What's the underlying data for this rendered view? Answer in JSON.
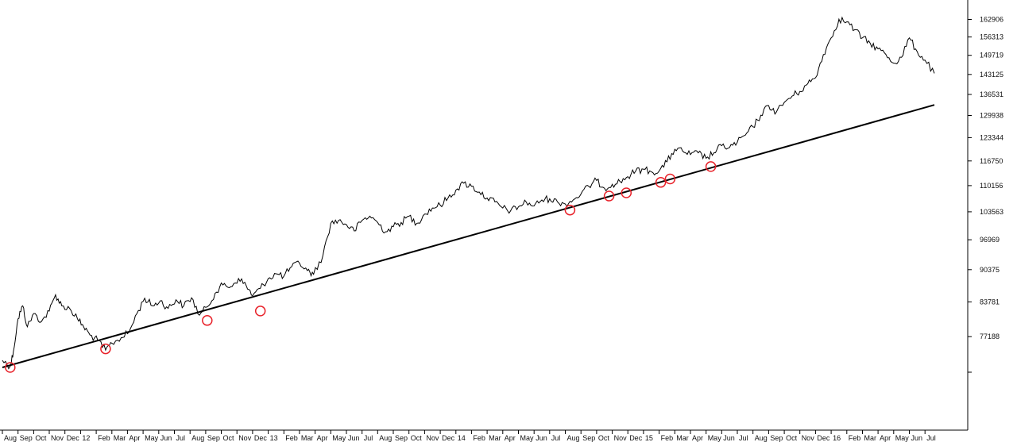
{
  "chart_data": {
    "type": "line",
    "title": "",
    "xlabel": "",
    "ylabel": "",
    "y_axis_position": "right",
    "y_scale": "log",
    "grid": false,
    "legend": "none",
    "y_ticks": [
      162906,
      156313,
      149719,
      143125,
      136531,
      129938,
      123344,
      116750,
      110156,
      103563,
      96969,
      90375,
      83781,
      77188
    ],
    "ylim": [
      67000,
      168000
    ],
    "x_ticks": [
      "Aug",
      "Sep",
      "Oct",
      "Nov",
      "Dec",
      "12",
      "Feb",
      "Mar",
      "Apr",
      "May",
      "Jun",
      "Jul",
      "Aug",
      "Sep",
      "Oct",
      "Nov",
      "Dec",
      "13",
      "Feb",
      "Mar",
      "Apr",
      "May",
      "Jun",
      "Jul",
      "Aug",
      "Sep",
      "Oct",
      "Nov",
      "Dec",
      "14",
      "Feb",
      "Mar",
      "Apr",
      "May",
      "Jun",
      "Jul",
      "Aug",
      "Sep",
      "Oct",
      "Nov",
      "Dec",
      "15",
      "Feb",
      "Mar",
      "Apr",
      "May",
      "Jun",
      "Jul",
      "Aug",
      "Sep",
      "Oct",
      "Nov",
      "Dec",
      "16",
      "Feb",
      "Mar",
      "Apr",
      "May",
      "Jun",
      "Jul"
    ],
    "xlim": [
      0,
      59.6
    ],
    "series": [
      {
        "kind": "price",
        "color": "#000000",
        "points": [
          [
            0,
            73000
          ],
          [
            0.5,
            72000
          ],
          [
            0.7,
            74500
          ],
          [
            1.0,
            80500
          ],
          [
            1.3,
            83000
          ],
          [
            1.6,
            79000
          ],
          [
            2.0,
            81500
          ],
          [
            2.5,
            80000
          ],
          [
            3.0,
            82000
          ],
          [
            3.4,
            85200
          ],
          [
            3.8,
            83000
          ],
          [
            4.3,
            82500
          ],
          [
            4.8,
            80500
          ],
          [
            5.2,
            79000
          ],
          [
            5.6,
            77500
          ],
          [
            6.1,
            76500
          ],
          [
            6.6,
            74800
          ],
          [
            7.0,
            76000
          ],
          [
            7.6,
            77000
          ],
          [
            8.1,
            78000
          ],
          [
            8.6,
            81500
          ],
          [
            9.1,
            84500
          ],
          [
            9.6,
            83000
          ],
          [
            10.1,
            84000
          ],
          [
            10.6,
            82500
          ],
          [
            11.1,
            84200
          ],
          [
            11.6,
            83000
          ],
          [
            12.1,
            84600
          ],
          [
            12.6,
            81200
          ],
          [
            13.1,
            82800
          ],
          [
            13.6,
            85500
          ],
          [
            14.1,
            87200
          ],
          [
            14.6,
            86800
          ],
          [
            15.1,
            88500
          ],
          [
            15.6,
            87000
          ],
          [
            16.0,
            85000
          ],
          [
            16.5,
            86500
          ],
          [
            17.0,
            88500
          ],
          [
            17.5,
            89500
          ],
          [
            18.0,
            89000
          ],
          [
            18.5,
            91000
          ],
          [
            19.0,
            91800
          ],
          [
            19.5,
            90200
          ],
          [
            19.9,
            89400
          ],
          [
            20.5,
            93500
          ],
          [
            21.0,
            100800
          ],
          [
            21.5,
            101500
          ],
          [
            22.0,
            100500
          ],
          [
            22.5,
            99000
          ],
          [
            23.0,
            101500
          ],
          [
            23.5,
            102500
          ],
          [
            24.0,
            101000
          ],
          [
            24.5,
            98800
          ],
          [
            25.0,
            100000
          ],
          [
            25.5,
            101000
          ],
          [
            26.0,
            102500
          ],
          [
            26.5,
            100800
          ],
          [
            27.0,
            103000
          ],
          [
            27.5,
            104500
          ],
          [
            28.0,
            105200
          ],
          [
            28.5,
            107000
          ],
          [
            29.0,
            109000
          ],
          [
            29.5,
            110800
          ],
          [
            30.0,
            110000
          ],
          [
            30.5,
            108500
          ],
          [
            31.0,
            107000
          ],
          [
            31.5,
            106000
          ],
          [
            32.0,
            104500
          ],
          [
            32.5,
            103800
          ],
          [
            33.0,
            104800
          ],
          [
            33.5,
            106000
          ],
          [
            34.0,
            105000
          ],
          [
            34.5,
            106500
          ],
          [
            35.0,
            106800
          ],
          [
            35.5,
            106000
          ],
          [
            36.0,
            105500
          ],
          [
            36.5,
            106500
          ],
          [
            37.0,
            108000
          ],
          [
            37.5,
            110000
          ],
          [
            38.0,
            111500
          ],
          [
            38.5,
            109500
          ],
          [
            39.0,
            110500
          ],
          [
            39.5,
            111200
          ],
          [
            40.0,
            112500
          ],
          [
            40.5,
            114000
          ],
          [
            41.0,
            114500
          ],
          [
            41.5,
            113800
          ],
          [
            42.0,
            114000
          ],
          [
            42.5,
            116500
          ],
          [
            43.0,
            120000
          ],
          [
            43.5,
            119500
          ],
          [
            44.0,
            118500
          ],
          [
            44.5,
            119000
          ],
          [
            45.0,
            117500
          ],
          [
            45.5,
            119000
          ],
          [
            46.0,
            121000
          ],
          [
            46.5,
            120500
          ],
          [
            47.0,
            122000
          ],
          [
            47.5,
            124000
          ],
          [
            48.0,
            126500
          ],
          [
            48.5,
            130000
          ],
          [
            49.0,
            133000
          ],
          [
            49.5,
            131000
          ],
          [
            50.0,
            134000
          ],
          [
            50.5,
            136000
          ],
          [
            51.0,
            137500
          ],
          [
            51.5,
            140000
          ],
          [
            52.0,
            142000
          ],
          [
            52.5,
            150000
          ],
          [
            53.0,
            156000
          ],
          [
            53.5,
            163000
          ],
          [
            54.0,
            162000
          ],
          [
            54.5,
            159000
          ],
          [
            55.0,
            156000
          ],
          [
            55.5,
            154000
          ],
          [
            56.0,
            152000
          ],
          [
            56.5,
            150000
          ],
          [
            57.0,
            147000
          ],
          [
            57.5,
            149000
          ],
          [
            58.0,
            156000
          ],
          [
            58.5,
            151000
          ],
          [
            59.0,
            148000
          ],
          [
            59.6,
            143500
          ]
        ]
      },
      {
        "kind": "trendline",
        "color": "#000000",
        "points": [
          [
            0,
            71800
          ],
          [
            59.6,
            133200
          ]
        ]
      }
    ],
    "annotations": {
      "kind": "touch-points",
      "color": "#e8222a",
      "shape": "circle",
      "points": [
        [
          0.5,
          71800
        ],
        [
          6.6,
          75000
        ],
        [
          13.1,
          80200
        ],
        [
          16.5,
          82000
        ],
        [
          36.3,
          104000
        ],
        [
          38.8,
          107500
        ],
        [
          39.9,
          108300
        ],
        [
          42.1,
          111000
        ],
        [
          42.7,
          111900
        ],
        [
          45.3,
          115200
        ]
      ]
    }
  }
}
